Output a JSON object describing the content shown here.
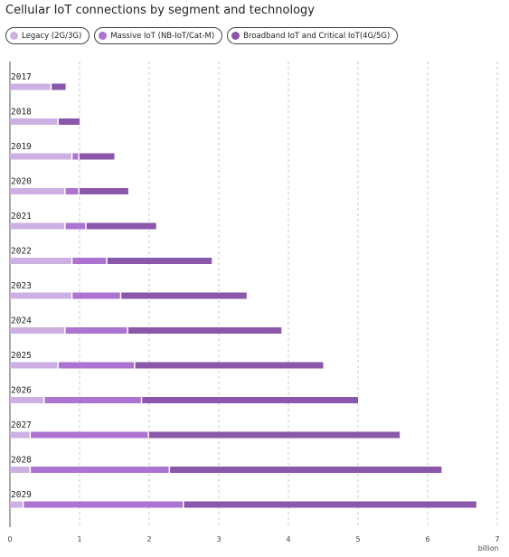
{
  "chart_data": {
    "type": "bar",
    "orientation": "horizontal",
    "stacked": true,
    "title": "Cellular IoT connections by segment and technology",
    "categories": [
      "2017",
      "2018",
      "2019",
      "2020",
      "2021",
      "2022",
      "2023",
      "2024",
      "2025",
      "2026",
      "2027",
      "2028",
      "2029"
    ],
    "series": [
      {
        "name": "Legacy (2G/3G)",
        "color": "#cdb0e3",
        "values": [
          0.6,
          0.7,
          0.9,
          0.8,
          0.8,
          0.9,
          0.9,
          0.8,
          0.7,
          0.5,
          0.3,
          0.3,
          0.2
        ]
      },
      {
        "name": "Massive IoT (NB-IoT/Cat-M)",
        "color": "#ac73d0",
        "values": [
          0.0,
          0.0,
          0.1,
          0.2,
          0.3,
          0.5,
          0.7,
          0.9,
          1.1,
          1.4,
          1.7,
          2.0,
          2.3
        ]
      },
      {
        "name": "Broadband IoT and Critical IoT(4G/5G)",
        "color": "#8b57aa",
        "values": [
          0.2,
          0.3,
          0.5,
          0.7,
          1.0,
          1.5,
          1.8,
          2.2,
          2.7,
          3.1,
          3.6,
          3.9,
          4.2
        ]
      }
    ],
    "xlim": [
      0,
      7
    ],
    "xticks": [
      "0",
      "1",
      "2",
      "3",
      "4",
      "5",
      "6",
      "7"
    ],
    "xunit": "billion",
    "grid": "vertical-dashed",
    "legend": "top"
  }
}
